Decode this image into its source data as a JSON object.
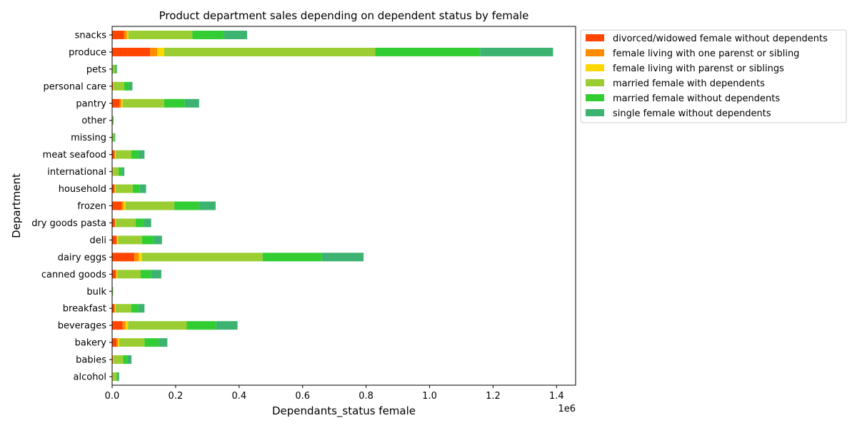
{
  "chart_data": {
    "type": "bar",
    "orientation": "horizontal",
    "stacked": true,
    "title": "Product department sales depending on dependent status by female",
    "xlabel": "Dependants_status female",
    "ylabel": "Department",
    "x_offset_label": "1e6",
    "xlim": [
      0,
      1460000
    ],
    "x_ticks": [
      0,
      200000,
      400000,
      600000,
      800000,
      1000000,
      1200000,
      1400000
    ],
    "x_tick_labels": [
      "0.0",
      "0.2",
      "0.4",
      "0.6",
      "0.8",
      "1.0",
      "1.2",
      "1.4"
    ],
    "legend_position": "outside-upper-right",
    "grid": false,
    "categories": [
      "alcohol",
      "babies",
      "bakery",
      "beverages",
      "breakfast",
      "bulk",
      "canned goods",
      "dairy eggs",
      "deli",
      "dry goods pasta",
      "frozen",
      "household",
      "international",
      "meat seafood",
      "missing",
      "other",
      "pantry",
      "personal care",
      "pets",
      "produce",
      "snacks"
    ],
    "series": [
      {
        "name": "divorced/widowed female without dependents",
        "color": "#ff4500",
        "values": [
          1000,
          2000,
          14000,
          33000,
          7000,
          300,
          11000,
          70000,
          13000,
          8000,
          30000,
          7000,
          1500,
          7000,
          700,
          300,
          24000,
          2500,
          800,
          120000,
          38000
        ]
      },
      {
        "name": "female living with one parenst or sibling",
        "color": "#ff8c00",
        "values": [
          500,
          1000,
          4000,
          9000,
          2000,
          100,
          3000,
          14000,
          3000,
          2000,
          6000,
          2000,
          500,
          2000,
          200,
          100,
          5000,
          800,
          200,
          22000,
          8000
        ]
      },
      {
        "name": "female living with parenst or siblings",
        "color": "#ffd700",
        "values": [
          500,
          1000,
          4000,
          8000,
          2000,
          100,
          3000,
          10000,
          3000,
          2000,
          5000,
          2000,
          500,
          2000,
          200,
          100,
          4000,
          700,
          200,
          22000,
          5000
        ]
      },
      {
        "name": "married female with dependents",
        "color": "#9acd32",
        "values": [
          12000,
          31000,
          80000,
          185000,
          49000,
          1500,
          73000,
          380000,
          75000,
          62000,
          155000,
          54000,
          18000,
          49000,
          4500,
          2000,
          131000,
          34000,
          7000,
          665000,
          202000
        ]
      },
      {
        "name": "married female without dependents",
        "color": "#32cd32",
        "values": [
          4000,
          13000,
          45000,
          93000,
          23000,
          700,
          33000,
          187000,
          37000,
          27000,
          78000,
          22000,
          9000,
          23000,
          2000,
          1000,
          65000,
          15000,
          3500,
          330000,
          100000
        ]
      },
      {
        "name": "single female without dependents",
        "color": "#3cb371",
        "values": [
          4000,
          13000,
          27000,
          67000,
          19000,
          500,
          32000,
          131000,
          26000,
          22000,
          52000,
          20000,
          9000,
          19000,
          2000,
          1000,
          45000,
          11000,
          3500,
          230000,
          72000
        ]
      }
    ]
  }
}
